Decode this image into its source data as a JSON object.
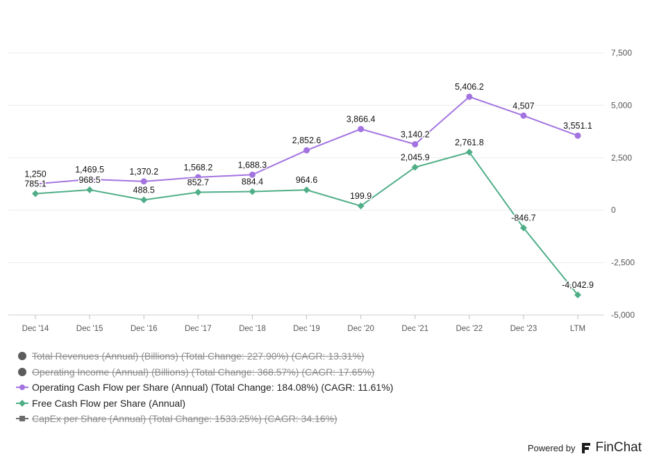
{
  "chart_data": {
    "type": "line",
    "categories": [
      "Dec '14",
      "Dec '15",
      "Dec '16",
      "Dec '17",
      "Dec '18",
      "Dec '19",
      "Dec '20",
      "Dec '21",
      "Dec '22",
      "Dec '23",
      "LTM"
    ],
    "ylim": [
      -5000,
      7500
    ],
    "yticks": [
      7500,
      5000,
      2500,
      0,
      -2500,
      -5000
    ],
    "ytick_labels": [
      "7,500",
      "5,000",
      "2,500",
      "0",
      "-2,500",
      "-5,000"
    ],
    "series": [
      {
        "name": "Operating Cash Flow per Share (Annual)",
        "color": "#a374e0",
        "marker": "circle",
        "values": [
          1250,
          1469.5,
          1370.2,
          1568.2,
          1688.3,
          2852.6,
          3866.4,
          3140.2,
          5406.2,
          4507,
          3551.1
        ],
        "labels": [
          "1,250",
          "1,469.5",
          "1,370.2",
          "1,568.2",
          "1,688.3",
          "2,852.6",
          "3,866.4",
          "3,140.2",
          "5,406.2",
          "4,507",
          "3,551.1"
        ]
      },
      {
        "name": "Free Cash Flow per Share (Annual)",
        "color": "#4fae87",
        "marker": "diamond",
        "values": [
          785.1,
          968.5,
          488.5,
          852.7,
          884.4,
          964.6,
          199.9,
          2045.9,
          2761.8,
          -846.7,
          -4042.9
        ],
        "labels": [
          "785.1",
          "968.5",
          "488.5",
          "852.7",
          "884.4",
          "964.6",
          "199.9",
          "2,045.9",
          "2,761.8",
          "-846.7",
          "-4,042.9"
        ]
      }
    ]
  },
  "legend": [
    {
      "label": "Total Revenues (Annual) (Billions) (Total Change: 227.90%) (CAGR: 13.31%)",
      "symbol": "circle-big",
      "color": "#5c5c5c",
      "enabled": false
    },
    {
      "label": "Operating Income (Annual) (Billions) (Total Change: 368.57%) (CAGR: 17.65%)",
      "symbol": "circle-big",
      "color": "#5c5c5c",
      "enabled": false
    },
    {
      "label": "Operating Cash Flow per Share (Annual) (Total Change: 184.08%) (CAGR: 11.61%)",
      "symbol": "line-circle",
      "color": "#a374e0",
      "enabled": true
    },
    {
      "label": "Free Cash Flow per Share (Annual)",
      "symbol": "line-diamond",
      "color": "#4fae87",
      "enabled": true
    },
    {
      "label": "CapEx per Share (Annual) (Total Change: 1533.25%) (CAGR: 34.16%)",
      "symbol": "line-square",
      "color": "#6b6b6b",
      "enabled": false
    }
  ],
  "footer": {
    "powered_by": "Powered by",
    "brand": "FinChat"
  }
}
